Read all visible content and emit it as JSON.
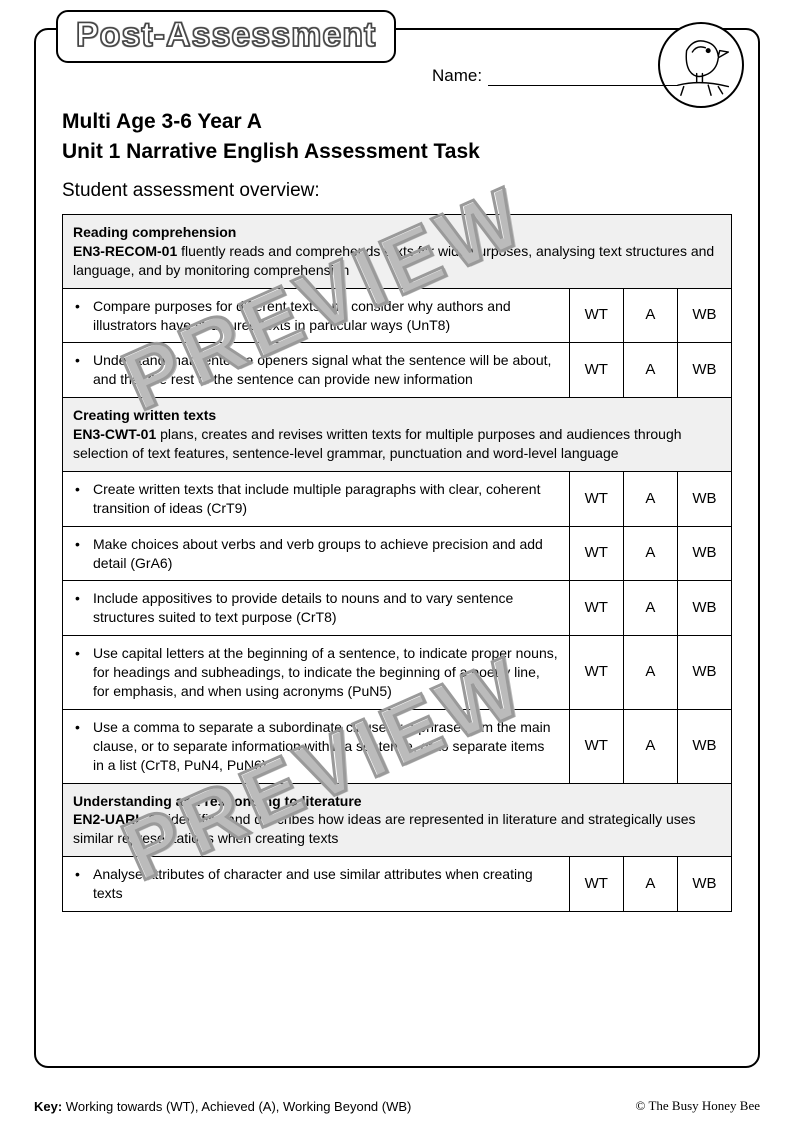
{
  "badge": "Post-Assessment",
  "name_label": "Name:",
  "title1": "Multi Age 3-6 Year A",
  "title2": "Unit 1 Narrative English Assessment Task",
  "overview": "Student assessment overview:",
  "score_labels": {
    "wt": "WT",
    "a": "A",
    "wb": "WB"
  },
  "sections": [
    {
      "head_bold": "Reading comprehension",
      "head_line2_bold": "EN3-RECOM-01",
      "head_line2_rest": " fluently reads and comprehends texts for wide purposes, analysing text structures and language, and by monitoring comprehension",
      "rows": [
        "Compare purposes for different texts and consider why authors and illustrators have structured texts in particular ways (UnT8)",
        "Understand that sentence openers signal what the sentence will be about, and that the rest of the sentence can provide new information"
      ]
    },
    {
      "head_bold": "Creating written texts",
      "head_line2_bold": "EN3-CWT-01",
      "head_line2_rest": " plans, creates and revises written texts for multiple purposes and audiences through selection of text features, sentence-level grammar, punctuation and word-level language",
      "rows": [
        "Create written texts that include multiple paragraphs with clear, coherent transition of ideas (CrT9)",
        "Make choices about verbs and verb groups to achieve precision and add detail (GrA6)",
        "Include appositives to provide details to nouns and to vary sentence structures suited to text purpose (CrT8)",
        "Use capital letters at the beginning of a sentence, to indicate proper nouns, for headings and subheadings, to indicate the beginning of a poetry line, for emphasis, and when using acronyms (PuN5)",
        "Use a comma to separate a subordinate clause or a phrase from the main clause, or to separate information within a sentence, or to separate items in a list (CrT8, PuN4, PuN6)"
      ]
    },
    {
      "head_bold": "Understanding and responding to literature",
      "head_line2_bold": "EN2-UARL-01",
      "head_line2_rest": " identifies and describes how ideas are represented in literature and strategically uses similar representations when creating texts",
      "rows": [
        "Analyse attributes of character and use similar attributes when creating texts"
      ]
    }
  ],
  "key_bold": "Key:",
  "key_text": " Working towards (WT), Achieved (A), Working Beyond (WB)",
  "copyright": "© The Busy Honey Bee",
  "watermark": "PREVIEW",
  "colors": {
    "border": "#000000",
    "section_bg": "#f0f0f0",
    "watermark_stroke": "#9a9a9a"
  }
}
